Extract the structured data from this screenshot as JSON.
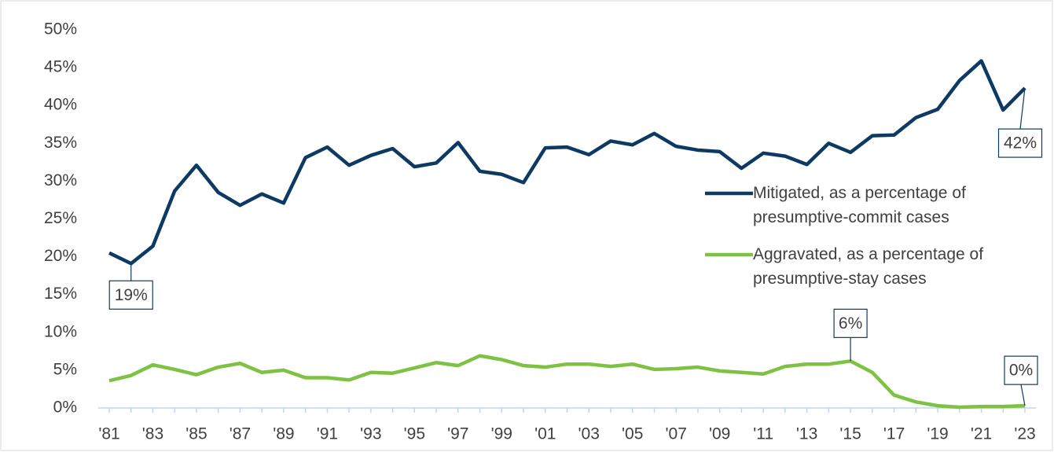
{
  "chart_data": {
    "type": "line",
    "categories": [
      "'81",
      null,
      "'83",
      null,
      "'85",
      null,
      "'87",
      null,
      "'89",
      null,
      "'91",
      null,
      "'93",
      null,
      "'95",
      null,
      "'97",
      null,
      "'99",
      null,
      "'01",
      null,
      "'03",
      null,
      "'05",
      null,
      "'07",
      null,
      "'09",
      null,
      "'11",
      null,
      "'13",
      null,
      "'15",
      null,
      "'17",
      null,
      "'19",
      null,
      "'21",
      null,
      "'23"
    ],
    "series": [
      {
        "name": "Mitigated, as a percentage of presumptive-commit cases",
        "color": "#0d3a63",
        "values": [
          20.5,
          19.1,
          21.4,
          28.7,
          32.1,
          28.5,
          26.8,
          28.3,
          27.1,
          33.1,
          34.5,
          32.1,
          33.4,
          34.3,
          31.9,
          32.4,
          35.1,
          31.3,
          30.9,
          29.8,
          34.4,
          34.5,
          33.5,
          35.3,
          34.8,
          36.3,
          34.6,
          34.1,
          33.9,
          31.7,
          33.7,
          33.3,
          32.2,
          35.0,
          33.8,
          36.0,
          36.1,
          38.4,
          39.5,
          43.3,
          45.9,
          39.4,
          42.3
        ],
        "value_labels": [
          null,
          "19%",
          null,
          null,
          null,
          null,
          null,
          null,
          null,
          null,
          null,
          null,
          null,
          null,
          null,
          null,
          null,
          null,
          null,
          null,
          null,
          null,
          null,
          null,
          null,
          null,
          null,
          null,
          null,
          null,
          null,
          null,
          null,
          null,
          null,
          null,
          null,
          null,
          null,
          null,
          null,
          null,
          "42%"
        ]
      },
      {
        "name": "Aggravated, as a percentage of presumptive-stay cases",
        "color": "#7dc242",
        "values": [
          3.6,
          4.3,
          5.7,
          5.1,
          4.4,
          5.4,
          5.9,
          4.7,
          5.0,
          4.0,
          4.0,
          3.7,
          4.7,
          4.6,
          5.3,
          6.0,
          5.6,
          6.9,
          6.4,
          5.6,
          5.4,
          5.8,
          5.8,
          5.5,
          5.8,
          5.1,
          5.2,
          5.4,
          4.9,
          4.7,
          4.5,
          5.5,
          5.8,
          5.8,
          6.2,
          4.7,
          1.7,
          0.8,
          0.3,
          0.1,
          0.2,
          0.2,
          0.3
        ],
        "value_labels": [
          null,
          null,
          null,
          null,
          null,
          null,
          null,
          null,
          null,
          null,
          null,
          null,
          null,
          null,
          null,
          null,
          null,
          null,
          null,
          null,
          null,
          null,
          null,
          null,
          null,
          null,
          null,
          null,
          null,
          null,
          null,
          null,
          null,
          null,
          "6%",
          null,
          null,
          null,
          null,
          null,
          null,
          null,
          "0%"
        ]
      }
    ],
    "ylim": [
      0,
      50
    ],
    "yticks": [
      {
        "value": 0,
        "label": "0%"
      },
      {
        "value": 5,
        "label": "5%"
      },
      {
        "value": 10,
        "label": "10%"
      },
      {
        "value": 15,
        "label": "15%"
      },
      {
        "value": 20,
        "label": "20%"
      },
      {
        "value": 25,
        "label": "25%"
      },
      {
        "value": 30,
        "label": "30%"
      },
      {
        "value": 35,
        "label": "35%"
      },
      {
        "value": 40,
        "label": "40%"
      },
      {
        "value": 45,
        "label": "45%"
      },
      {
        "value": 50,
        "label": "50%"
      }
    ],
    "grid": false,
    "legend": "right"
  }
}
